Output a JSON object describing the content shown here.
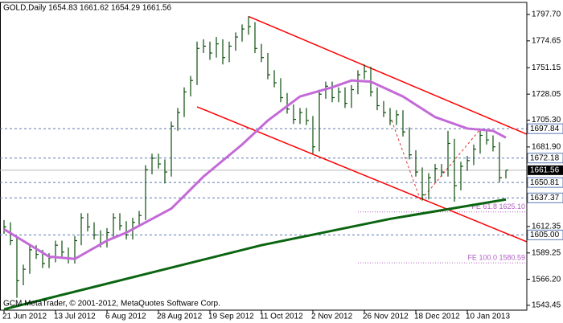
{
  "chart_data": {
    "type": "ohlc",
    "title": "GOLD,Daily  1654.83 1661.62 1654.29 1661.56",
    "footer": "GCM MetaTrader, © 2001-2012, MetaQuotes Software Corp.",
    "categories": [
      "21 Jun 2012",
      null,
      null,
      null,
      null,
      null,
      null,
      null,
      "13 Jul 2012",
      null,
      null,
      null,
      null,
      null,
      null,
      null,
      "6 Aug 2012",
      null,
      null,
      null,
      null,
      null,
      null,
      null,
      "28 Aug 2012",
      null,
      null,
      null,
      null,
      null,
      null,
      null,
      "19 Sep 2012",
      null,
      null,
      null,
      null,
      null,
      null,
      null,
      "11 Oct 2012",
      null,
      null,
      null,
      null,
      null,
      null,
      null,
      "2 Nov 2012",
      null,
      null,
      null,
      null,
      null,
      null,
      null,
      "26 Nov 2012",
      null,
      null,
      null,
      null,
      null,
      null,
      null,
      "18 Dec 2012",
      null,
      null,
      null,
      null,
      null,
      null,
      null,
      "10 Jan 2013",
      null,
      null,
      null,
      null,
      null,
      null
    ],
    "bars": {
      "color": "#0b4d0b",
      "high": [
        1618,
        1616,
        1604,
        1579,
        1596,
        1596,
        1592,
        1589,
        1600,
        1600,
        1594,
        1604,
        1624,
        1624,
        1616,
        1609,
        1611,
        1624,
        1624,
        1617,
        1620,
        1626,
        1666,
        1676,
        1676,
        1671,
        1704,
        1716,
        1734,
        1744,
        1774,
        1776,
        1774,
        1778,
        1776,
        1774,
        1782,
        1789,
        1796,
        1791,
        1772,
        1764,
        1749,
        1742,
        1729,
        1719,
        1716,
        1716,
        1709,
        1732,
        1739,
        1739,
        1734,
        1734,
        1736,
        1749,
        1754,
        1752,
        1734,
        1722,
        1716,
        1714,
        1714,
        1699,
        1679,
        1664,
        1659,
        1667,
        1667,
        1696,
        1689,
        1669,
        1674,
        1684,
        1696,
        1696,
        1692,
        1686,
        1661.62
      ],
      "low": [
        1606,
        1596,
        1550,
        1561,
        1571,
        1584,
        1576,
        1576,
        1581,
        1586,
        1580,
        1580,
        1596,
        1608,
        1601,
        1594,
        1594,
        1603,
        1609,
        1601,
        1601,
        1612,
        1618,
        1658,
        1663,
        1650,
        1656,
        1696,
        1708,
        1726,
        1736,
        1764,
        1758,
        1760,
        1754,
        1756,
        1766,
        1774,
        1780,
        1764,
        1756,
        1741,
        1734,
        1721,
        1711,
        1702,
        1702,
        1701,
        1676,
        1678,
        1724,
        1721,
        1721,
        1716,
        1716,
        1728,
        1741,
        1726,
        1714,
        1708,
        1701,
        1701,
        1691,
        1671,
        1656,
        1635,
        1636,
        1651,
        1656,
        1656,
        1634,
        1644,
        1661,
        1666,
        1676,
        1684,
        1678,
        1651,
        1654.29
      ],
      "close": [
        1612,
        1600,
        1565,
        1575,
        1592,
        1588,
        1580,
        1585,
        1596,
        1590,
        1584,
        1600,
        1620,
        1612,
        1605,
        1598,
        1607,
        1620,
        1613,
        1605,
        1616,
        1622,
        1662,
        1672,
        1667,
        1660,
        1700,
        1712,
        1730,
        1740,
        1768,
        1770,
        1764,
        1772,
        1760,
        1770,
        1778,
        1785,
        1787,
        1768,
        1760,
        1745,
        1738,
        1725,
        1715,
        1706,
        1712,
        1705,
        1682,
        1728,
        1735,
        1725,
        1730,
        1720,
        1732,
        1745,
        1748,
        1730,
        1718,
        1712,
        1705,
        1710,
        1695,
        1675,
        1660,
        1640,
        1655,
        1663,
        1660,
        1685,
        1648,
        1665,
        1670,
        1680,
        1692,
        1688,
        1682,
        1655,
        1661.56
      ]
    },
    "indicators": [
      {
        "color": "#c46ad8",
        "x": [
          0,
          7,
          11,
          16,
          19,
          26,
          31,
          37,
          41,
          46,
          51,
          54,
          57,
          62,
          67,
          72,
          76,
          78
        ],
        "values": [
          1610,
          1586,
          1584,
          1600,
          1607,
          1628,
          1656,
          1684,
          1705,
          1726,
          1734,
          1740,
          1739,
          1726,
          1708,
          1698,
          1696,
          1690
        ]
      },
      {
        "color": "#0a6410",
        "x": [
          0,
          20,
          40,
          60,
          78
        ],
        "values": [
          1540,
          1568,
          1596,
          1619,
          1636
        ]
      }
    ],
    "trendlines": [
      {
        "color": "#ff0000",
        "x": [
          38,
          81.25
        ],
        "values": [
          1796,
          1693
        ]
      },
      {
        "color": "#ff0000",
        "x": [
          30,
          81.25
        ],
        "values": [
          1717,
          1599
        ]
      }
    ],
    "fibo_path": {
      "color": "#e03030",
      "x": [
        60.25,
        64.75,
        74.1
      ],
      "values": [
        1705,
        1635,
        1698
      ]
    },
    "fibo_levels": [
      {
        "label": "FE 61.8 1625.10",
        "value": 1625.1,
        "x": 55
      },
      {
        "label": "FE 100.0 1580.59",
        "value": 1580.59,
        "x": 55
      }
    ],
    "fibo_level_color": "#b060c0",
    "levels": [
      1697.84,
      1672.18,
      1650.81,
      1637.37,
      {
        "value": 1605,
        "label": "1605.00"
      }
    ],
    "level_color": "#5a78b4",
    "current": {
      "value": 1661.56,
      "color": "#b8b8b8"
    },
    "xlim": [
      -0.625,
      81.25
    ],
    "ylim": [
      1539.24,
      1808.24
    ],
    "yticks": [
      {
        "value": 1797.7,
        "label": "1797.70"
      },
      1774.65,
      1751.15,
      1728.05,
      {
        "value": 1705.3,
        "label": "1705.30"
      },
      {
        "value": 1681.9,
        "label": "1681.90"
      },
      1612.35,
      1589.25,
      {
        "value": 1566.2,
        "label": "1566.20"
      },
      1543.45
    ]
  }
}
